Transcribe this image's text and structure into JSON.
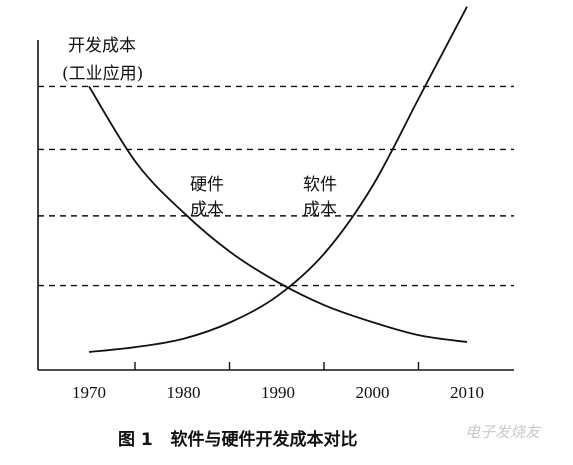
{
  "chart_data": {
    "type": "line",
    "title": "",
    "caption": "图 1   软件与硬件开发成本对比",
    "ylabel_lines": [
      "开发成本",
      "(工业应用)"
    ],
    "xlabel": "",
    "x_ticks": [
      1970,
      1980,
      1990,
      2000,
      2010
    ],
    "xlim": [
      1970,
      2010
    ],
    "ylim": [
      0,
      100
    ],
    "grid": "horizontal-dashed",
    "gridlines_y": [
      20,
      41,
      61,
      80
    ],
    "series": [
      {
        "name": "硬件成本",
        "label_lines": [
          "硬件",
          "成本"
        ],
        "x": [
          1970,
          1975,
          1980,
          1985,
          1990,
          1995,
          2000,
          2005,
          2010
        ],
        "y": [
          80,
          57,
          42,
          30,
          21,
          14,
          9,
          5,
          3
        ]
      },
      {
        "name": "软件成本",
        "label_lines": [
          "软件",
          "成本"
        ],
        "x": [
          1970,
          1975,
          1980,
          1985,
          1990,
          1995,
          2000,
          2005,
          2010
        ],
        "y": [
          0,
          1.5,
          4,
          9,
          17,
          30,
          50,
          77,
          104
        ]
      }
    ]
  },
  "watermark": "电子发烧友"
}
